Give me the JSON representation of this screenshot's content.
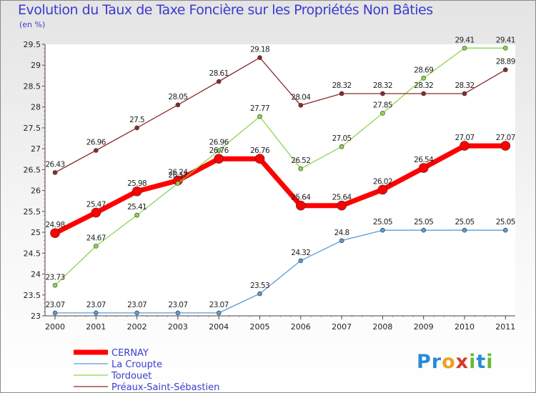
{
  "chart_data": {
    "type": "line",
    "title": "Evolution du Taux de Taxe Foncière sur les Propriétés Non Bâties",
    "subtitle": "(en %)",
    "x": [
      "2000",
      "2001",
      "2002",
      "2003",
      "2004",
      "2005",
      "2006",
      "2007",
      "2008",
      "2009",
      "2010",
      "2011"
    ],
    "ylim": [
      23,
      29.5
    ],
    "yticks": [
      "23",
      "23.5",
      "24",
      "24.5",
      "25",
      "25.5",
      "26",
      "26.5",
      "27",
      "27.5",
      "28",
      "28.5",
      "29",
      "29.5"
    ],
    "grid": false,
    "legend_position": "bottom-left",
    "series": [
      {
        "name": "CERNAY",
        "color": "#ff0000",
        "values": [
          24.98,
          25.47,
          25.98,
          26.24,
          26.76,
          26.76,
          25.64,
          25.64,
          26.02,
          26.54,
          27.07,
          27.07
        ],
        "labels": [
          "24.98",
          "25.47",
          "25.98",
          "26.24",
          "26.76",
          "26.76",
          "25.64",
          "25.64",
          "26.02",
          "26.54",
          "27.07",
          "27.07"
        ]
      },
      {
        "name": "La Croupte",
        "color": "#5b9bd5",
        "values": [
          23.07,
          23.07,
          23.07,
          23.07,
          23.07,
          23.53,
          24.32,
          24.8,
          25.05,
          25.05,
          25.05,
          25.05
        ],
        "labels": [
          "23.07",
          "23.07",
          "23.07",
          "23.07",
          "23.07",
          "23.53",
          "24.32",
          "24.8",
          "25.05",
          "25.05",
          "25.05",
          "25.05"
        ]
      },
      {
        "name": "Tordouet",
        "color": "#8fd44f",
        "values": [
          23.73,
          24.67,
          25.41,
          26.17,
          26.96,
          27.77,
          26.52,
          27.05,
          27.85,
          28.69,
          29.41,
          29.41
        ],
        "labels": [
          "23.73",
          "24.67",
          "25.41",
          "26.17",
          "26.96",
          "27.77",
          "26.52",
          "27.05",
          "27.85",
          "28.69",
          "29.41",
          "29.41"
        ]
      },
      {
        "name": "Préaux-Saint-Sébastien",
        "color": "#8b2a2a",
        "values": [
          26.43,
          26.96,
          27.5,
          28.05,
          28.61,
          29.18,
          28.04,
          28.32,
          28.32,
          28.32,
          28.32,
          28.89
        ],
        "labels": [
          "26.43",
          "26.96",
          "27.5",
          "28.05",
          "28.61",
          "29.18",
          "28.04",
          "28.32",
          "28.32",
          "28.32",
          "28.32",
          "28.89"
        ]
      }
    ]
  },
  "logo": {
    "p": "Pr",
    "o": "o",
    "x": "x",
    "i": "i",
    "t": "t",
    "i2": "i"
  }
}
